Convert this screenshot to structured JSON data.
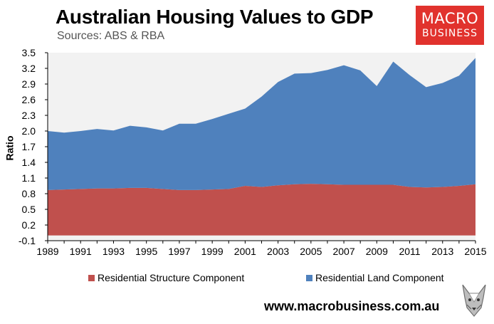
{
  "header": {
    "title": "Australian Housing Values to GDP",
    "subtitle": "Sources: ABS & RBA"
  },
  "logo": {
    "line1": "MACRO",
    "line2": "BUSINESS"
  },
  "footer": {
    "website": "www.macrobusiness.com.au"
  },
  "colors": {
    "structure": "#c0504d",
    "land": "#4f81bd",
    "plot_background": "#f2f2f2",
    "logo_red": "#e1322d"
  },
  "chart_data": {
    "type": "area",
    "stacked": true,
    "ylabel": "Ratio",
    "xlabel": "",
    "ylim": [
      -0.1,
      3.5
    ],
    "yticks": [
      "-0.1",
      "0.2",
      "0.5",
      "0.8",
      "1.1",
      "1.4",
      "1.7",
      "2.0",
      "2.3",
      "2.6",
      "2.9",
      "3.2",
      "3.5"
    ],
    "xticks": [
      "1989",
      "1991",
      "1993",
      "1995",
      "1997",
      "1999",
      "2001",
      "2003",
      "2005",
      "2007",
      "2009",
      "2011",
      "2013",
      "2015"
    ],
    "x": [
      1989,
      1990,
      1991,
      1992,
      1993,
      1994,
      1995,
      1996,
      1997,
      1998,
      1999,
      2000,
      2001,
      2002,
      2003,
      2004,
      2005,
      2006,
      2007,
      2008,
      2009,
      2010,
      2011,
      2012,
      2013,
      2014,
      2015
    ],
    "series": [
      {
        "name": "Residential Structure Component",
        "values": [
          0.87,
          0.88,
          0.89,
          0.9,
          0.9,
          0.91,
          0.91,
          0.89,
          0.87,
          0.87,
          0.88,
          0.89,
          0.95,
          0.93,
          0.96,
          0.98,
          0.99,
          0.98,
          0.97,
          0.97,
          0.97,
          0.97,
          0.93,
          0.92,
          0.93,
          0.95,
          0.98
        ]
      },
      {
        "name": "Residential Land Component",
        "values": [
          1.13,
          1.09,
          1.11,
          1.14,
          1.11,
          1.19,
          1.16,
          1.12,
          1.27,
          1.27,
          1.35,
          1.44,
          1.48,
          1.73,
          1.98,
          2.12,
          2.12,
          2.19,
          2.29,
          2.19,
          1.89,
          2.36,
          2.14,
          1.92,
          1.99,
          2.11,
          2.42
        ]
      }
    ],
    "legend": [
      "Residential Structure Component",
      "Residential Land Component"
    ],
    "legend_position": "bottom",
    "grid": false
  }
}
